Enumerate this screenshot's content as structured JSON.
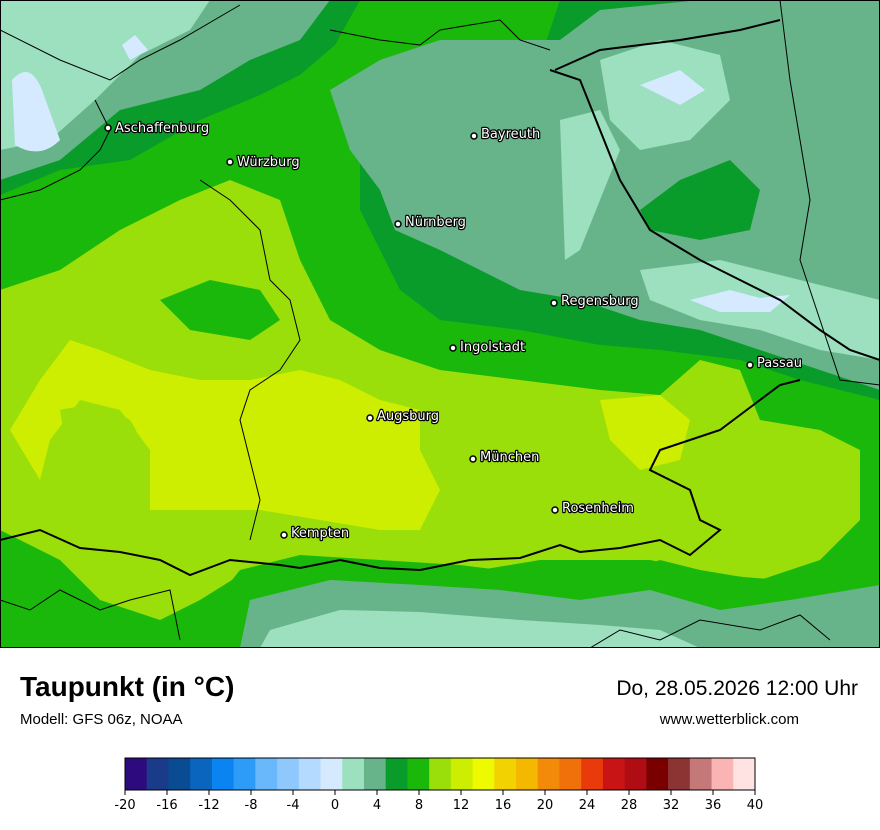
{
  "title": "Taupunkt (in °C)",
  "model": "Modell: GFS 06z, NOAA",
  "datetime": "Do, 28.05.2026 12:00 Uhr",
  "website": "www.wetterblick.com",
  "cities": [
    {
      "name": "Aschaffenburg"
    },
    {
      "name": "Würzburg"
    },
    {
      "name": "Bayreuth"
    },
    {
      "name": "Nürnberg"
    },
    {
      "name": "Regensburg"
    },
    {
      "name": "Ingolstadt"
    },
    {
      "name": "Passau"
    },
    {
      "name": "Augsburg"
    },
    {
      "name": "München"
    },
    {
      "name": "Rosenheim"
    },
    {
      "name": "Kempten"
    }
  ],
  "legend": {
    "min": -20,
    "max": 40,
    "colors": [
      "#2d0a7e",
      "#1a3a8a",
      "#0a4c94",
      "#0a65be",
      "#0a84f0",
      "#2d9cf8",
      "#6ab8fc",
      "#8ec8fc",
      "#b4daff",
      "#d6eaff",
      "#9ce0c0",
      "#68b48a",
      "#0a9c2a",
      "#1ab80a",
      "#9ade0a",
      "#cdee00",
      "#eefa00",
      "#f2d200",
      "#f4b800",
      "#f48a0a",
      "#f0700a",
      "#e83a0a",
      "#c81414",
      "#b00c14",
      "#7a0000",
      "#8c3434",
      "#c47878",
      "#fab4b4",
      "#ffe2e2"
    ],
    "tick_labels": [
      "-20",
      "-16",
      "-12",
      "-8",
      "-4",
      "0",
      "4",
      "8",
      "12",
      "16",
      "20",
      "24",
      "28",
      "32",
      "36",
      "40"
    ]
  }
}
